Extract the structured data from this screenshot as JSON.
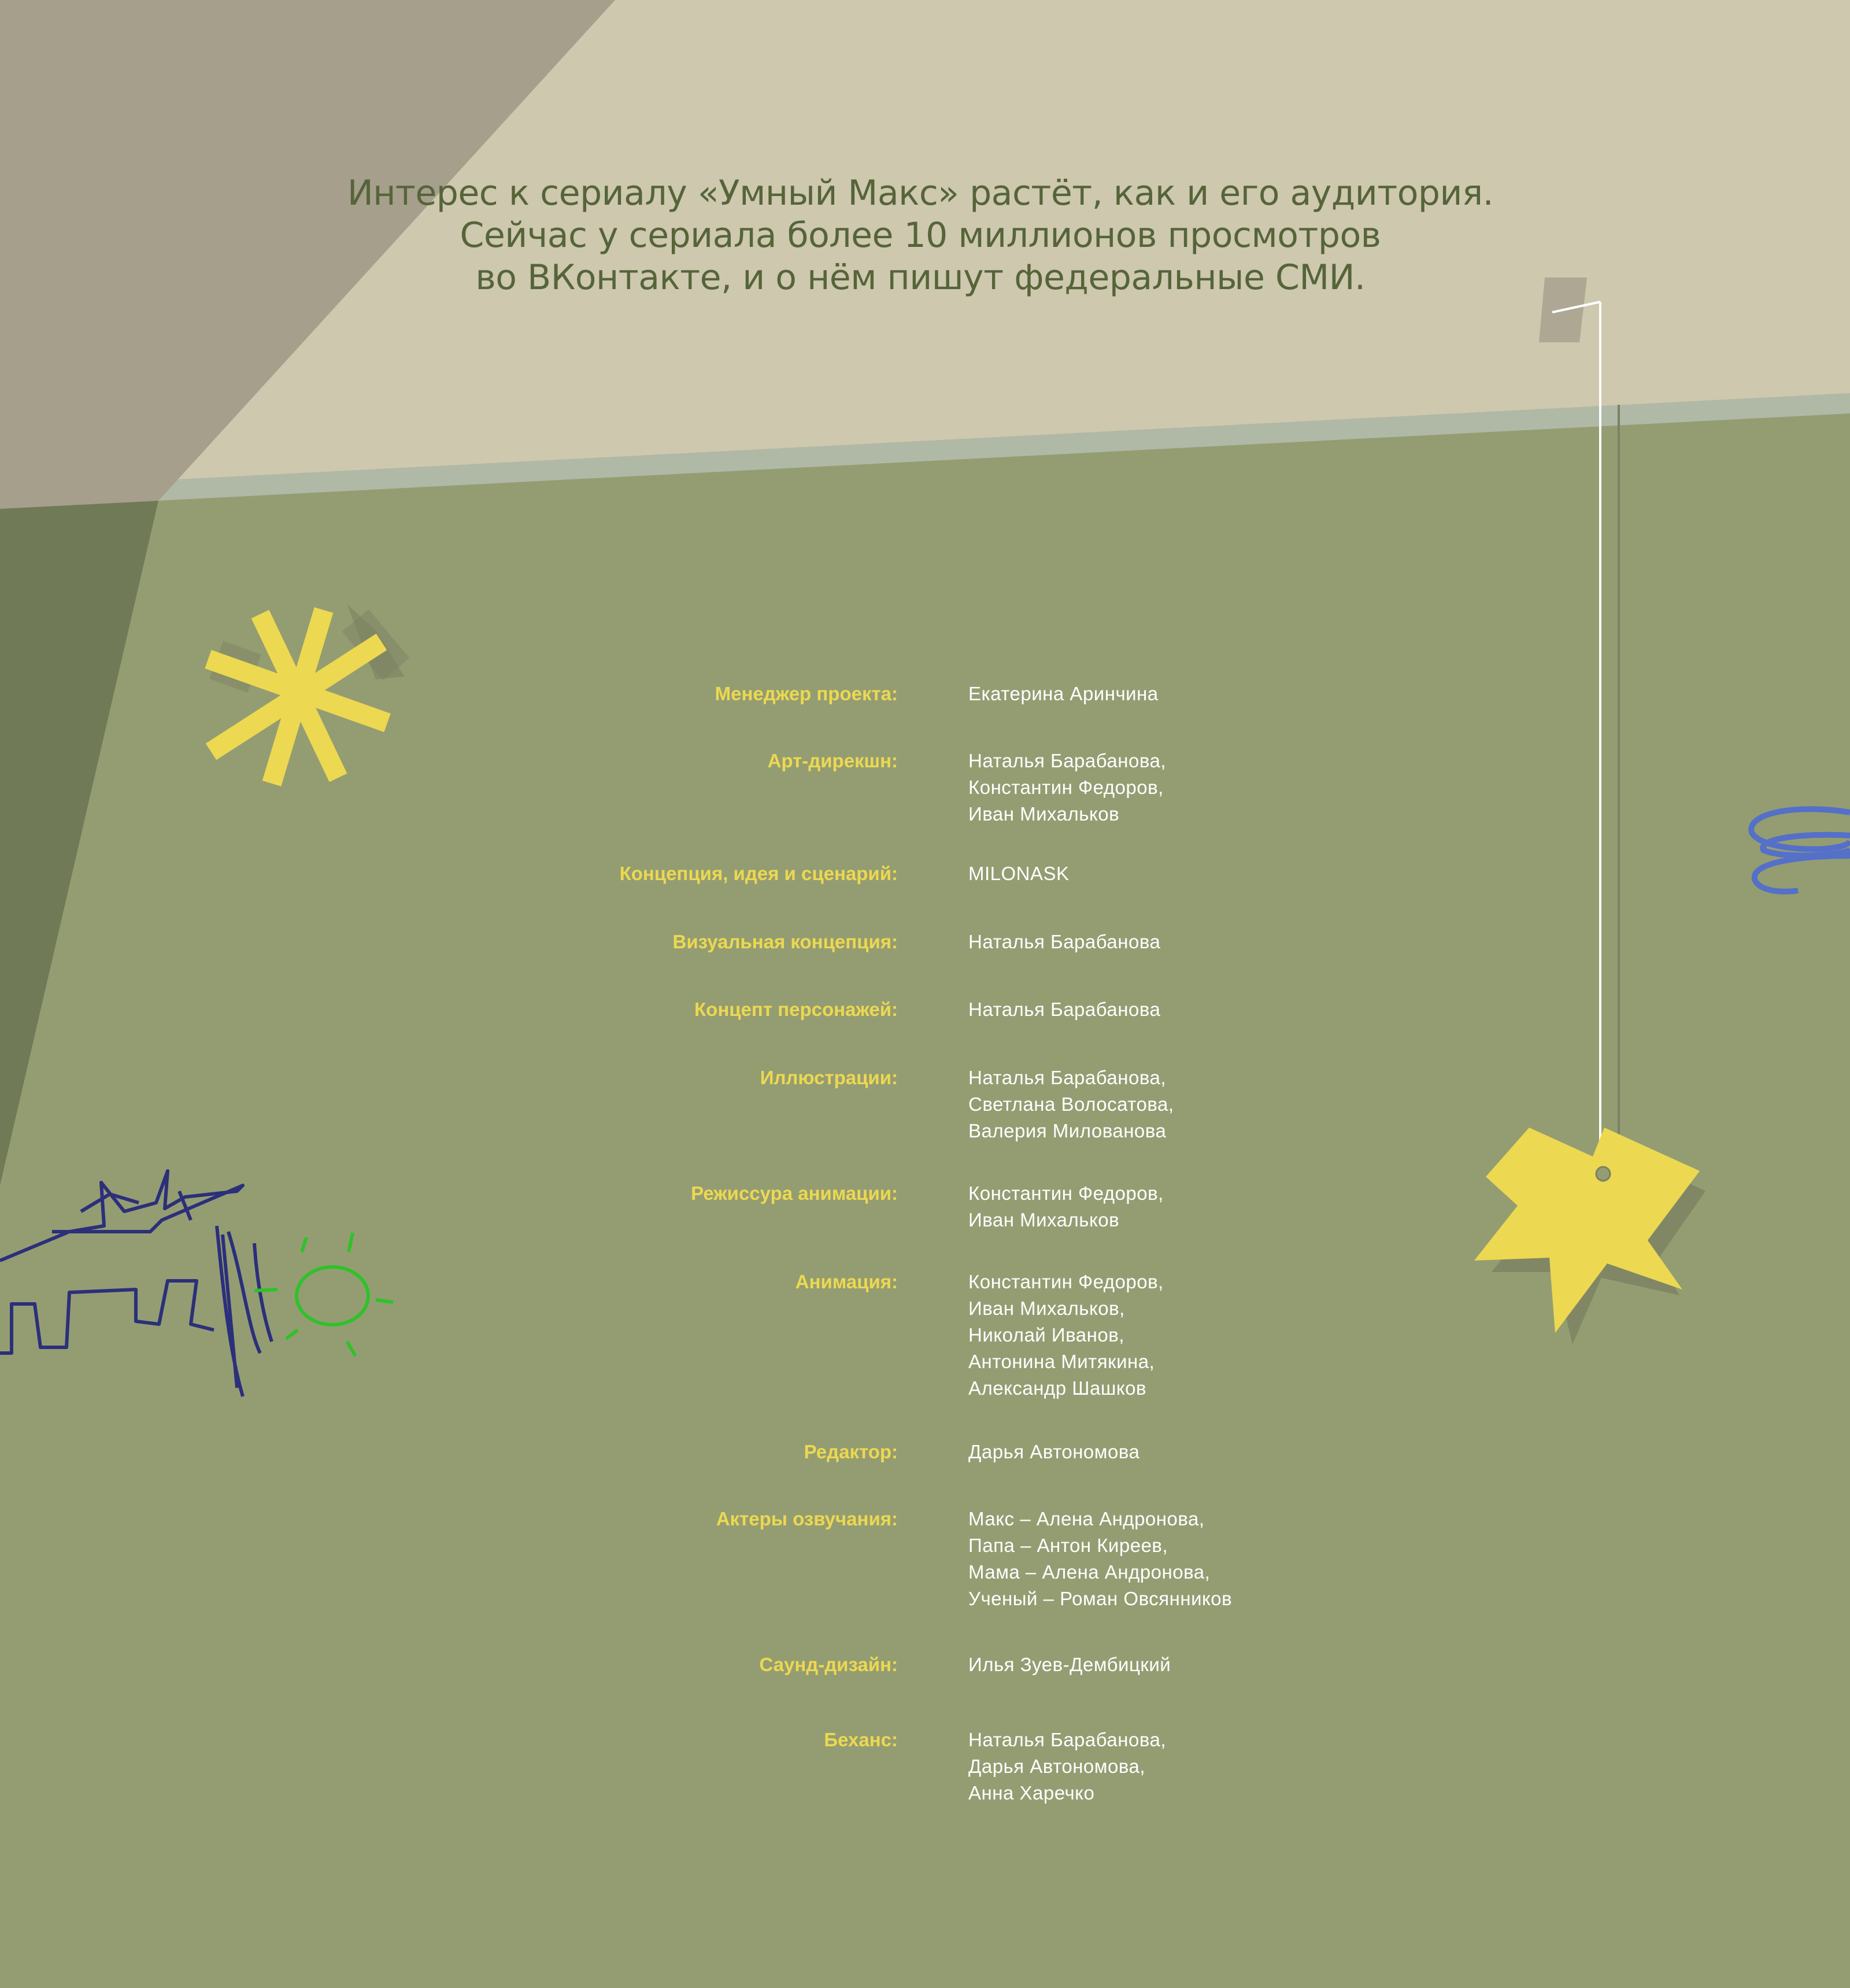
{
  "intro": {
    "lines": [
      "Интерес к сериалу «Умный Макс» растёт, как и его аудитория.",
      "Сейчас у сериала более 10 миллионов просмотров",
      "во ВКонтакте, и о нём пишут федеральные СМИ."
    ]
  },
  "credits": [
    {
      "label": "Менеджер проекта:",
      "names": [
        "Екатерина Аринчина"
      ]
    },
    {
      "label": "Арт-дирекшн:",
      "names": [
        "Наталья Барабанова,",
        "Константин Федоров,",
        "Иван Михальков"
      ]
    },
    {
      "label": "Концепция, идея и сценарий:",
      "names": [
        "MILONASK"
      ]
    },
    {
      "label": "Визуальная концепция:",
      "names": [
        "Наталья Барабанова"
      ]
    },
    {
      "label": "Концепт персонажей:",
      "names": [
        "Наталья Барабанова"
      ]
    },
    {
      "label": "Иллюстрации:",
      "names": [
        "Наталья Барабанова,",
        "Светлана Волосатова,",
        "Валерия Милованова"
      ]
    },
    {
      "label": "Режиссура анимации:",
      "names": [
        "Константин Федоров,",
        "Иван Михальков"
      ]
    },
    {
      "label": "Анимация:",
      "names": [
        "Константин Федоров,",
        "Иван Михальков,",
        "Николай Иванов,",
        "Антонина Митякина,",
        "Александр Шашков"
      ]
    },
    {
      "label": "Редактор:",
      "names": [
        "Дарья Автономова"
      ]
    },
    {
      "label": "Актеры озвучания:",
      "names": [
        "Макс – Алена Андронова,",
        "Папа – Антон Киреев,",
        "Мама – Алена Андронова,",
        "Ученый – Роман Овсянников"
      ]
    },
    {
      "label": "Саунд-дизайн:",
      "names": [
        "Илья Зуев-Дембицкий"
      ]
    },
    {
      "label": "Беханс:",
      "names": [
        "Наталья Барабанова,",
        "Дарья Автономова,",
        "Анна Харечко"
      ]
    }
  ],
  "colors": {
    "background": "#949d72",
    "top_panel": "#cdc8ae",
    "accent_yellow": "#ecd851",
    "title_text": "#56643a",
    "value_text": "#ffffff"
  }
}
